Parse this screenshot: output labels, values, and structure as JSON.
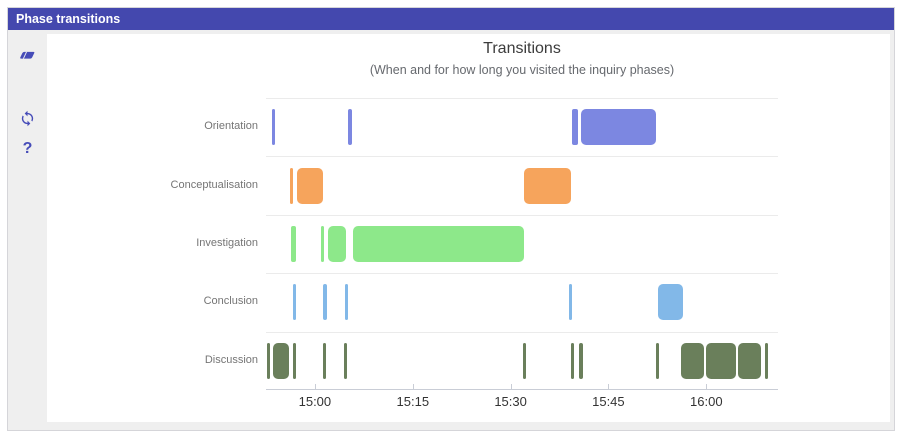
{
  "window": {
    "title": "Phase transitions"
  },
  "sidebar": {
    "icons": [
      {
        "name": "eraser",
        "action": "clear"
      },
      {
        "name": "refresh",
        "action": "reload"
      },
      {
        "name": "help",
        "glyph": "?"
      }
    ],
    "icon_color": "#464cb8"
  },
  "header": {
    "bg_color": "#4448ae",
    "text_color": "#ffffff"
  },
  "chart_data": {
    "type": "bar",
    "subtype": "timeline-gantt",
    "title": "Transitions",
    "subtitle": "(When and for how long you visited the inquiry phases)",
    "categories": [
      "Orientation",
      "Conceptualisation",
      "Investigation",
      "Conclusion",
      "Discussion"
    ],
    "x_axis": {
      "tick_labels": [
        "15:00",
        "15:15",
        "15:30",
        "15:45",
        "16:00"
      ],
      "tick_minutes": [
        0,
        15,
        30,
        45,
        60
      ],
      "domain_min_minutes": -7.5,
      "domain_max_minutes": 71,
      "unit": "minutes relative to 15:00",
      "grid": "horizontal-row-lines"
    },
    "legend": "none",
    "series": [
      {
        "name": "Orientation",
        "color": "#7c87e1",
        "intervals": [
          [
            -6.6,
            -6.14
          ],
          [
            5.06,
            5.68
          ],
          [
            39.43,
            40.35
          ],
          [
            40.82,
            52.33
          ]
        ]
      },
      {
        "name": "Conceptualisation",
        "color": "#f6a45c",
        "intervals": [
          [
            -3.84,
            -3.53
          ],
          [
            -2.76,
            1.23
          ],
          [
            32.07,
            39.28
          ]
        ]
      },
      {
        "name": "Investigation",
        "color": "#8de88a",
        "intervals": [
          [
            -3.68,
            -2.92
          ],
          [
            0.92,
            1.38
          ],
          [
            2.0,
            4.76
          ],
          [
            5.83,
            32.07
          ]
        ]
      },
      {
        "name": "Conclusion",
        "color": "#82b8e8",
        "intervals": [
          [
            -3.38,
            -2.92
          ],
          [
            1.23,
            1.84
          ],
          [
            4.6,
            5.06
          ],
          [
            38.98,
            39.43
          ],
          [
            52.63,
            56.47
          ]
        ]
      },
      {
        "name": "Discussion",
        "color": "#6a7f5b",
        "intervals": [
          [
            -7.4,
            -7.05
          ],
          [
            -6.45,
            -4.0
          ],
          [
            -3.38,
            -3.07
          ],
          [
            1.23,
            1.53
          ],
          [
            4.45,
            4.91
          ],
          [
            31.92,
            32.38
          ],
          [
            39.28,
            39.74
          ],
          [
            40.51,
            41.12
          ],
          [
            52.33,
            52.63
          ],
          [
            56.16,
            59.69
          ],
          [
            60.0,
            64.6
          ],
          [
            64.91,
            68.44
          ],
          [
            69.05,
            69.51
          ]
        ]
      }
    ]
  }
}
